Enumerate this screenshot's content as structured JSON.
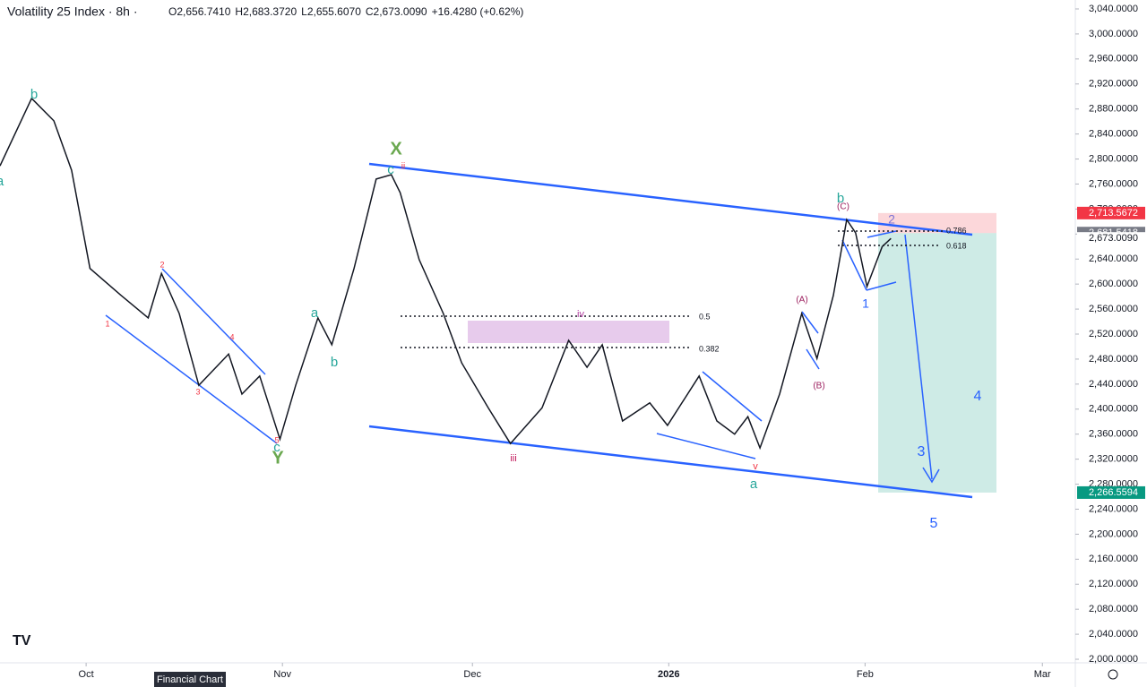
{
  "chart_data": {
    "type": "line",
    "title": "Volatility 25 Index · 8h ·",
    "ohlc": [
      "O2,656.7410",
      "H2,683.3720",
      "L2,655.6070",
      "C2,673.0090",
      "+16.4280 (+0.62%)"
    ],
    "series": [
      {
        "name": "Volatility 25 Index",
        "color": "#131722",
        "x": [
          -13.6,
          -8.6,
          -5.1,
          -2.3,
          0.6,
          5.5,
          9.8,
          11.9,
          14.7,
          17.8,
          22.5,
          24.6,
          27.4,
          30.6,
          33.1,
          36.6,
          38.8,
          42.3,
          45.8,
          48.2,
          49.6,
          52.6,
          56.4,
          59.3,
          63.5,
          67.0,
          72.0,
          76.2,
          79.1,
          81.5,
          84.7,
          89.0,
          91.8,
          96.8,
          99.6,
          102.4,
          104.5,
          106.4,
          109.5,
          113.0,
          115.4,
          118.0,
          120.1,
          121.5,
          123.3,
          125.7,
          127.1
        ],
        "values": [
          2789,
          2897,
          2861,
          2782,
          2625,
          2582,
          2546,
          2617,
          2553,
          2438,
          2488,
          2424,
          2453,
          2352,
          2438,
          2546,
          2503,
          2625,
          2768,
          2775,
          2746,
          2639,
          2553,
          2474,
          2402,
          2345,
          2402,
          2510,
          2467,
          2503,
          2381,
          2410,
          2374,
          2453,
          2381,
          2360,
          2388,
          2338,
          2424,
          2553,
          2481,
          2582,
          2703,
          2682,
          2596,
          2660,
          2673
        ]
      }
    ],
    "xlim": [
      -13.6,
      156.2
    ],
    "xticks": [
      {
        "value": 0,
        "label": "Oct"
      },
      {
        "value": 31,
        "label": "Nov"
      },
      {
        "value": 61,
        "label": "Dec"
      },
      {
        "value": 92,
        "label": "2026"
      },
      {
        "value": 123,
        "label": "Feb"
      },
      {
        "value": 151,
        "label": "Mar"
      }
    ],
    "ylim": [
      1994.3,
      3054.3
    ],
    "yticks": [
      {
        "value": 2000,
        "label": "2,000.0000"
      },
      {
        "value": 2040,
        "label": "2,040.0000"
      },
      {
        "value": 2080,
        "label": "2,080.0000"
      },
      {
        "value": 2120,
        "label": "2,120.0000"
      },
      {
        "value": 2160,
        "label": "2,160.0000"
      },
      {
        "value": 2200,
        "label": "2,200.0000"
      },
      {
        "value": 2240,
        "label": "2,240.0000"
      },
      {
        "value": 2280,
        "label": "2,280.0000"
      },
      {
        "value": 2320,
        "label": "2,320.0000"
      },
      {
        "value": 2360,
        "label": "2,360.0000"
      },
      {
        "value": 2400,
        "label": "2,400.0000"
      },
      {
        "value": 2440,
        "label": "2,440.0000"
      },
      {
        "value": 2480,
        "label": "2,480.0000"
      },
      {
        "value": 2520,
        "label": "2,520.0000"
      },
      {
        "value": 2560,
        "label": "2,560.0000"
      },
      {
        "value": 2600,
        "label": "2,600.0000"
      },
      {
        "value": 2640,
        "label": "2,640.0000"
      },
      {
        "value": 2680,
        "label": "2,680.0000"
      },
      {
        "value": 2720,
        "label": "2,720.0000"
      },
      {
        "value": 2760,
        "label": "2,760.0000"
      },
      {
        "value": 2800,
        "label": "2,800.0000"
      },
      {
        "value": 2840,
        "label": "2,840.0000"
      },
      {
        "value": 2880,
        "label": "2,880.0000"
      },
      {
        "value": 2920,
        "label": "2,920.0000"
      },
      {
        "value": 2960,
        "label": "2,960.0000"
      },
      {
        "value": 3000,
        "label": "3,000.0000"
      },
      {
        "value": 3040,
        "label": "3,040.0000"
      }
    ],
    "price_labels": [
      {
        "value": 2713.5672,
        "label": "2,713.5672",
        "color": "#f23645"
      },
      {
        "value": 2681.5418,
        "label": "2,681.5418",
        "color": "#787b86"
      },
      {
        "value": 2673.009,
        "label": "2,673.0090",
        "color": "#ffffff"
      },
      {
        "value": 2266.5594,
        "label": "2,266.5594",
        "color": "#089981"
      }
    ],
    "fib_levels": [
      "0.786",
      "0.618",
      "0.5",
      "0.382"
    ],
    "annotations": [
      {
        "text": "b",
        "color": "#26a69a"
      },
      {
        "text": "a",
        "color": "#26a69a"
      },
      {
        "text": "1",
        "color": "#f23645"
      },
      {
        "text": "2",
        "color": "#f23645"
      },
      {
        "text": "3",
        "color": "#f23645"
      },
      {
        "text": "4",
        "color": "#f23645"
      },
      {
        "text": "5",
        "color": "#f23645"
      },
      {
        "text": "c",
        "color": "#26a69a"
      },
      {
        "text": "Y",
        "color": "#6aa84f"
      },
      {
        "text": "a",
        "color": "#26a69a"
      },
      {
        "text": "b",
        "color": "#26a69a"
      },
      {
        "text": "X",
        "color": "#6aa84f"
      },
      {
        "text": "c",
        "color": "#26a69a"
      },
      {
        "text": "ii",
        "color": "#f23645"
      },
      {
        "text": "iv",
        "color": "#b03a9e"
      },
      {
        "text": "iii",
        "color": "#c2185b"
      },
      {
        "text": "v",
        "color": "#f23645"
      },
      {
        "text": "a",
        "color": "#26a69a"
      },
      {
        "text": "(A)",
        "color": "#9c1f5e"
      },
      {
        "text": "(B)",
        "color": "#9c1f5e"
      },
      {
        "text": "b",
        "color": "#26a69a"
      },
      {
        "text": "(C)",
        "color": "#9c1f5e"
      },
      {
        "text": "2",
        "color": "#7e74d4"
      },
      {
        "text": "1",
        "color": "#2962ff"
      },
      {
        "text": "3",
        "color": "#2962ff"
      },
      {
        "text": "4",
        "color": "#2962ff"
      },
      {
        "text": "5",
        "color": "#2962ff"
      }
    ],
    "tooltip": "Financial Chart"
  }
}
